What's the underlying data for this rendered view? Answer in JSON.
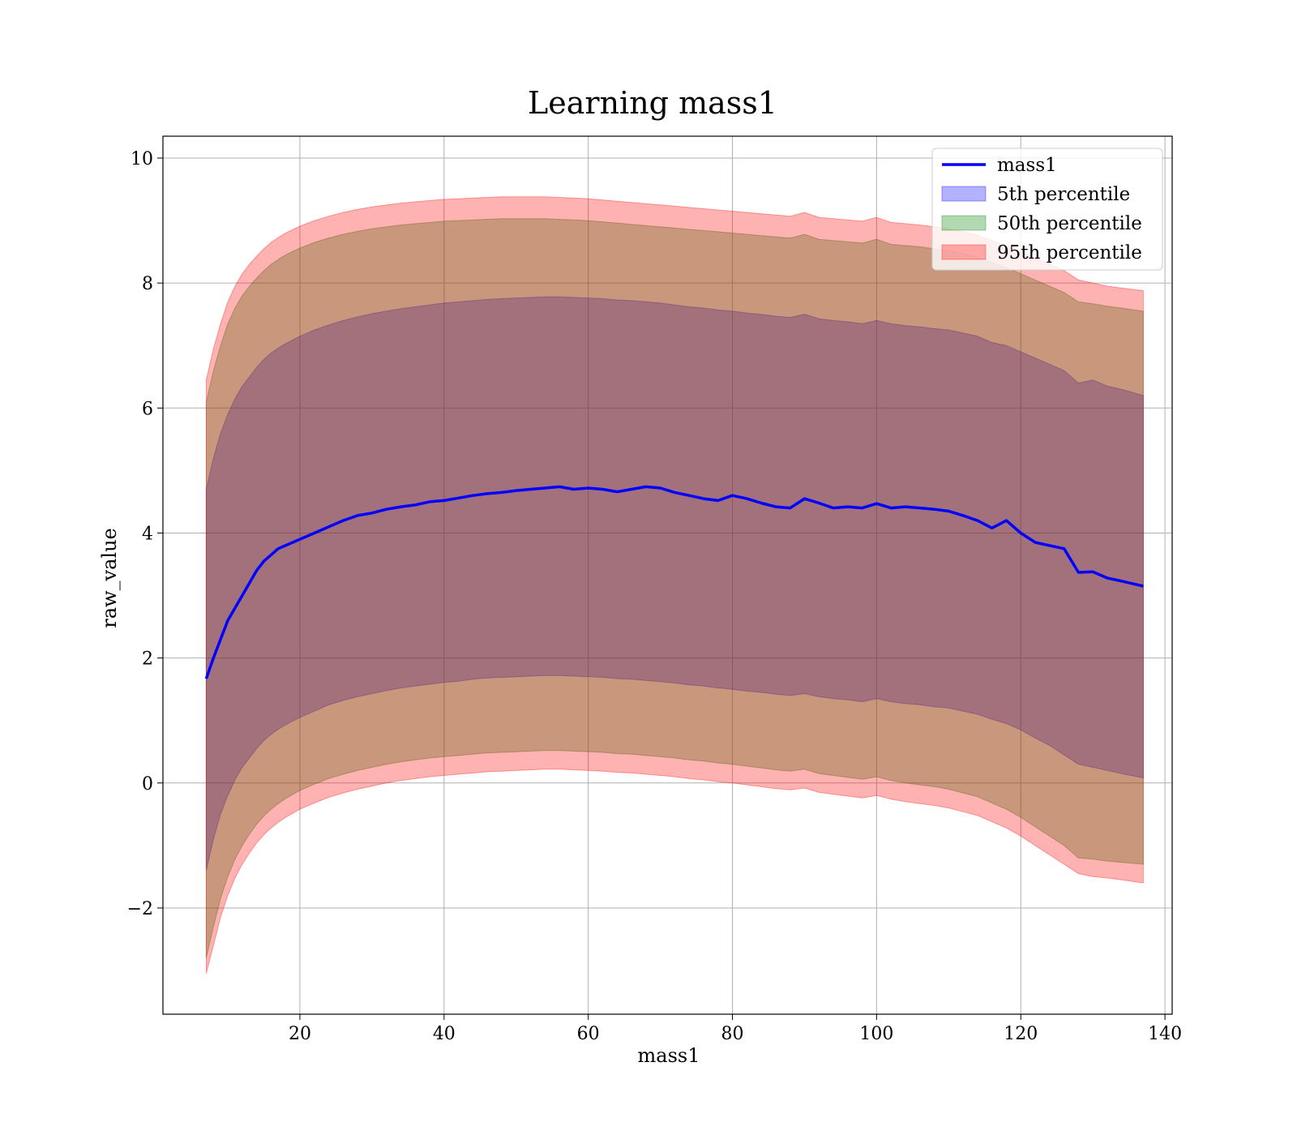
{
  "chart_data": {
    "type": "line",
    "title": "Learning mass1",
    "xlabel": "mass1",
    "ylabel": "raw_value",
    "xlim": [
      1,
      141
    ],
    "ylim": [
      -3.7,
      10.35
    ],
    "xticks": [
      20,
      40,
      60,
      80,
      100,
      120,
      140
    ],
    "yticks": [
      -2,
      0,
      2,
      4,
      6,
      8,
      10
    ],
    "grid": true,
    "legend_position": "top-right",
    "colors": {
      "line": "#0000ff",
      "band5": "#0000ff",
      "band50": "#008000",
      "band95": "#ff0000",
      "grid": "#b0b0b0"
    },
    "legend": [
      {
        "label": "mass1",
        "kind": "line",
        "color": "#0000ff"
      },
      {
        "label": "5th percentile",
        "kind": "patch",
        "color": "#0000ff"
      },
      {
        "label": "50th percentile",
        "kind": "patch",
        "color": "#008000"
      },
      {
        "label": "95th percentile",
        "kind": "patch",
        "color": "#ff0000"
      }
    ],
    "x": [
      7,
      8,
      9,
      10,
      11,
      12,
      13,
      14,
      15,
      16,
      17,
      18,
      20,
      22,
      24,
      26,
      28,
      30,
      32,
      34,
      36,
      38,
      40,
      42,
      44,
      46,
      48,
      50,
      52,
      54,
      56,
      58,
      60,
      62,
      64,
      66,
      68,
      70,
      72,
      74,
      76,
      78,
      80,
      82,
      84,
      86,
      88,
      90,
      92,
      94,
      96,
      98,
      100,
      102,
      104,
      106,
      108,
      110,
      112,
      114,
      116,
      118,
      120,
      122,
      124,
      126,
      128,
      130,
      132,
      134,
      137
    ],
    "series": [
      {
        "name": "mass1",
        "role": "line",
        "values": [
          1.67,
          2.0,
          2.3,
          2.6,
          2.8,
          3.0,
          3.2,
          3.4,
          3.55,
          3.65,
          3.75,
          3.8,
          3.9,
          4.0,
          4.1,
          4.2,
          4.28,
          4.32,
          4.38,
          4.42,
          4.45,
          4.5,
          4.52,
          4.56,
          4.6,
          4.63,
          4.65,
          4.68,
          4.7,
          4.72,
          4.74,
          4.7,
          4.72,
          4.7,
          4.66,
          4.7,
          4.74,
          4.72,
          4.65,
          4.6,
          4.55,
          4.52,
          4.6,
          4.55,
          4.48,
          4.42,
          4.4,
          4.55,
          4.48,
          4.4,
          4.42,
          4.4,
          4.47,
          4.4,
          4.42,
          4.4,
          4.38,
          4.35,
          4.28,
          4.2,
          4.08,
          4.2,
          4.0,
          3.85,
          3.8,
          3.75,
          3.37,
          3.38,
          3.28,
          3.23,
          3.15
        ]
      },
      {
        "name": "5th percentile",
        "role": "band",
        "lower": [
          -1.4,
          -0.9,
          -0.5,
          -0.2,
          0.05,
          0.25,
          0.4,
          0.55,
          0.68,
          0.78,
          0.86,
          0.93,
          1.05,
          1.15,
          1.25,
          1.32,
          1.38,
          1.43,
          1.48,
          1.52,
          1.55,
          1.58,
          1.61,
          1.63,
          1.66,
          1.68,
          1.69,
          1.7,
          1.71,
          1.72,
          1.72,
          1.71,
          1.7,
          1.69,
          1.67,
          1.66,
          1.64,
          1.62,
          1.6,
          1.57,
          1.55,
          1.52,
          1.5,
          1.47,
          1.45,
          1.42,
          1.4,
          1.43,
          1.38,
          1.35,
          1.33,
          1.3,
          1.35,
          1.3,
          1.27,
          1.25,
          1.22,
          1.2,
          1.15,
          1.1,
          1.02,
          0.95,
          0.85,
          0.72,
          0.6,
          0.45,
          0.3,
          0.25,
          0.2,
          0.15,
          0.08
        ],
        "upper": [
          4.7,
          5.2,
          5.6,
          5.9,
          6.15,
          6.35,
          6.5,
          6.65,
          6.78,
          6.88,
          6.96,
          7.03,
          7.15,
          7.25,
          7.33,
          7.4,
          7.46,
          7.51,
          7.55,
          7.59,
          7.62,
          7.65,
          7.68,
          7.7,
          7.72,
          7.74,
          7.75,
          7.76,
          7.77,
          7.78,
          7.78,
          7.77,
          7.76,
          7.75,
          7.73,
          7.72,
          7.7,
          7.68,
          7.65,
          7.62,
          7.6,
          7.57,
          7.55,
          7.52,
          7.5,
          7.47,
          7.45,
          7.5,
          7.43,
          7.4,
          7.38,
          7.35,
          7.4,
          7.35,
          7.32,
          7.3,
          7.27,
          7.25,
          7.2,
          7.15,
          7.05,
          7.0,
          6.9,
          6.8,
          6.7,
          6.6,
          6.4,
          6.45,
          6.35,
          6.3,
          6.2
        ]
      },
      {
        "name": "50th percentile",
        "role": "band",
        "lower": [
          -2.8,
          -2.3,
          -1.85,
          -1.5,
          -1.22,
          -1.0,
          -0.82,
          -0.66,
          -0.53,
          -0.42,
          -0.33,
          -0.25,
          -0.12,
          -0.02,
          0.07,
          0.14,
          0.2,
          0.25,
          0.3,
          0.34,
          0.37,
          0.4,
          0.42,
          0.44,
          0.46,
          0.48,
          0.49,
          0.5,
          0.51,
          0.52,
          0.52,
          0.51,
          0.5,
          0.49,
          0.47,
          0.46,
          0.44,
          0.42,
          0.4,
          0.37,
          0.35,
          0.32,
          0.3,
          0.27,
          0.24,
          0.21,
          0.19,
          0.22,
          0.15,
          0.12,
          0.09,
          0.06,
          0.1,
          0.04,
          0.0,
          -0.03,
          -0.06,
          -0.1,
          -0.16,
          -0.22,
          -0.32,
          -0.42,
          -0.55,
          -0.7,
          -0.85,
          -1.0,
          -1.2,
          -1.22,
          -1.25,
          -1.27,
          -1.3
        ],
        "upper": [
          6.1,
          6.6,
          7.0,
          7.35,
          7.6,
          7.8,
          7.95,
          8.08,
          8.2,
          8.3,
          8.38,
          8.45,
          8.56,
          8.65,
          8.72,
          8.78,
          8.83,
          8.87,
          8.9,
          8.93,
          8.95,
          8.97,
          8.99,
          9.0,
          9.01,
          9.02,
          9.03,
          9.03,
          9.03,
          9.03,
          9.02,
          9.01,
          9.0,
          8.98,
          8.96,
          8.94,
          8.92,
          8.9,
          8.88,
          8.86,
          8.84,
          8.82,
          8.8,
          8.78,
          8.76,
          8.74,
          8.72,
          8.78,
          8.7,
          8.68,
          8.66,
          8.64,
          8.7,
          8.62,
          8.6,
          8.58,
          8.55,
          8.52,
          8.47,
          8.42,
          8.33,
          8.25,
          8.15,
          8.05,
          7.95,
          7.85,
          7.7,
          7.67,
          7.63,
          7.6,
          7.55
        ]
      },
      {
        "name": "95th percentile",
        "role": "band",
        "lower": [
          -3.05,
          -2.6,
          -2.15,
          -1.8,
          -1.52,
          -1.3,
          -1.12,
          -0.96,
          -0.83,
          -0.72,
          -0.63,
          -0.55,
          -0.42,
          -0.32,
          -0.23,
          -0.16,
          -0.1,
          -0.05,
          0.0,
          0.04,
          0.07,
          0.1,
          0.12,
          0.14,
          0.16,
          0.18,
          0.19,
          0.2,
          0.21,
          0.22,
          0.22,
          0.21,
          0.2,
          0.19,
          0.17,
          0.16,
          0.14,
          0.12,
          0.1,
          0.07,
          0.05,
          0.02,
          0.0,
          -0.03,
          -0.06,
          -0.09,
          -0.11,
          -0.08,
          -0.15,
          -0.18,
          -0.21,
          -0.24,
          -0.2,
          -0.26,
          -0.3,
          -0.33,
          -0.36,
          -0.4,
          -0.46,
          -0.52,
          -0.62,
          -0.72,
          -0.85,
          -1.0,
          -1.15,
          -1.3,
          -1.45,
          -1.5,
          -1.52,
          -1.55,
          -1.6
        ],
        "upper": [
          6.45,
          6.95,
          7.35,
          7.7,
          7.95,
          8.15,
          8.3,
          8.43,
          8.55,
          8.65,
          8.73,
          8.8,
          8.91,
          9.0,
          9.07,
          9.13,
          9.18,
          9.22,
          9.25,
          9.28,
          9.3,
          9.32,
          9.34,
          9.35,
          9.36,
          9.37,
          9.38,
          9.38,
          9.38,
          9.38,
          9.37,
          9.36,
          9.35,
          9.33,
          9.31,
          9.29,
          9.27,
          9.25,
          9.23,
          9.21,
          9.19,
          9.17,
          9.15,
          9.13,
          9.11,
          9.09,
          9.07,
          9.13,
          9.05,
          9.03,
          9.01,
          8.99,
          9.05,
          8.97,
          8.95,
          8.93,
          8.9,
          8.87,
          8.82,
          8.77,
          8.68,
          8.6,
          8.5,
          8.4,
          8.3,
          8.2,
          8.05,
          8.0,
          7.95,
          7.92,
          7.88
        ]
      }
    ]
  }
}
